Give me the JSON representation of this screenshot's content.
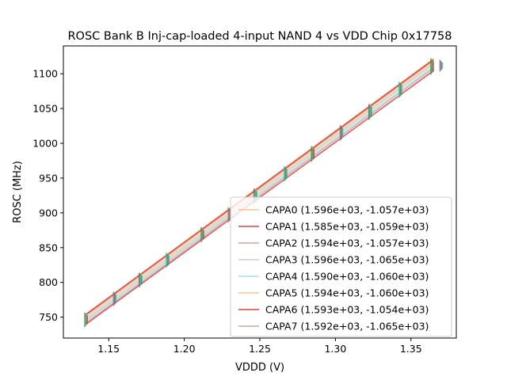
{
  "chart_data": {
    "type": "line",
    "title": "ROSC Bank B Inj-cap-loaded 4-input NAND 4 vs VDD Chip 0x17758",
    "xlabel": "VDDD (V)",
    "ylabel": "ROSC (MHz)",
    "xlim": [
      1.12,
      1.38
    ],
    "ylim": [
      720,
      1140
    ],
    "x_ticks": [
      "1.15",
      "1.20",
      "1.25",
      "1.30",
      "1.35"
    ],
    "y_ticks": [
      "750",
      "800",
      "850",
      "900",
      "950",
      "1000",
      "1050",
      "1100"
    ],
    "legend_position": "lower-right",
    "measured_vddd": [
      1.135,
      1.154,
      1.171,
      1.189,
      1.212,
      1.23,
      1.247,
      1.267,
      1.285,
      1.304,
      1.323,
      1.343,
      1.364,
      1.37
    ],
    "series": [
      {
        "name": "CAPA0 (1.596e+03, -1.057e+03)",
        "slope": 1596,
        "intercept": -1057,
        "color": "#ffbb78",
        "x_range": [
          1.135,
          1.365
        ]
      },
      {
        "name": "CAPA1 (1.585e+03, -1.059e+03)",
        "slope": 1585,
        "intercept": -1059,
        "color": "#d62728",
        "x_range": [
          1.135,
          1.365
        ]
      },
      {
        "name": "CAPA2 (1.594e+03, -1.057e+03)",
        "slope": 1594,
        "intercept": -1057,
        "color": "#c49c94",
        "x_range": [
          1.135,
          1.365
        ]
      },
      {
        "name": "CAPA3 (1.596e+03, -1.065e+03)",
        "slope": 1596,
        "intercept": -1065,
        "color": "#c7c7c7",
        "x_range": [
          1.135,
          1.365
        ]
      },
      {
        "name": "CAPA4 (1.590e+03, -1.060e+03)",
        "slope": 1590,
        "intercept": -1060,
        "color": "#9edae5",
        "x_range": [
          1.135,
          1.365
        ]
      },
      {
        "name": "CAPA5 (1.594e+03, -1.060e+03)",
        "slope": 1594,
        "intercept": -1060,
        "color": "#ffbb78",
        "x_range": [
          1.135,
          1.365
        ]
      },
      {
        "name": "CAPA6 (1.593e+03, -1.054e+03)",
        "slope": 1593,
        "intercept": -1054,
        "color": "#d62728",
        "x_range": [
          1.135,
          1.365
        ]
      },
      {
        "name": "CAPA7 (1.592e+03, -1.065e+03)",
        "slope": 1592,
        "intercept": -1065,
        "color": "#c49c94",
        "x_range": [
          1.135,
          1.365
        ]
      }
    ]
  }
}
